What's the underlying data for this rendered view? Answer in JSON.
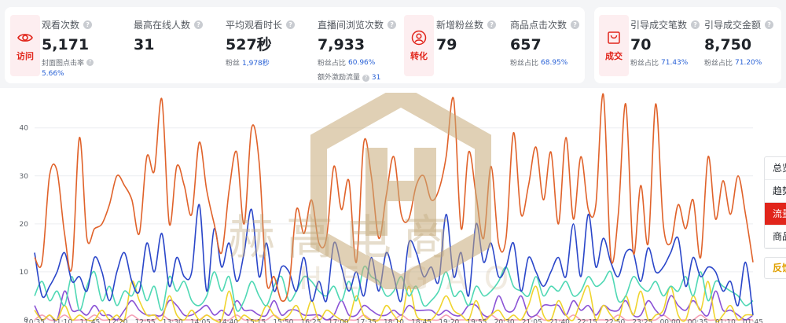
{
  "visit_section": {
    "label": "访问",
    "icon": "eye-icon",
    "metrics": [
      {
        "label": "观看次数",
        "value": "5,171",
        "sub_label": "封面图点击率",
        "sub_value": "5.66%"
      },
      {
        "label": "最高在线人数",
        "value": "31"
      },
      {
        "label": "平均观看时长",
        "value": "527秒",
        "sub_label": "粉丝",
        "sub_value": "1,978秒"
      },
      {
        "label": "直播间浏览次数",
        "value": "7,933",
        "sub_label": "粉丝占比",
        "sub_value": "60.96%",
        "sub2_label": "额外激励流量",
        "sub2_value": "31"
      }
    ]
  },
  "conversion_section": {
    "label": "转化",
    "icon": "user-circle-icon",
    "metrics": [
      {
        "label": "新增粉丝数",
        "value": "79"
      },
      {
        "label": "商品点击次数",
        "value": "657",
        "sub_label": "粉丝占比",
        "sub_value": "68.95%"
      }
    ]
  },
  "deal_section": {
    "label": "成交",
    "icon": "shopping-bag-icon",
    "metrics": [
      {
        "label": "引导成交笔数",
        "value": "70",
        "sub_label": "粉丝占比",
        "sub_value": "71.43%"
      },
      {
        "label": "引导成交金额",
        "value": "8,750",
        "sub_label": "粉丝占比",
        "sub_value": "71.20%"
      }
    ]
  },
  "watermark": {
    "text": "赫高电商",
    "sub": "HE GAO"
  },
  "series_menu": {
    "items": [
      {
        "label": "总览",
        "active": false
      },
      {
        "label": "趋势",
        "active": false
      },
      {
        "label": "流量",
        "active": true
      },
      {
        "label": "商品",
        "active": false
      }
    ],
    "feedback": "反馈"
  },
  "colors": {
    "accent": "#e1251b",
    "primary_blue": "#2a62d6",
    "category_bg": "#fdeef0"
  },
  "chart_data": {
    "type": "line",
    "ylim": [
      0,
      47
    ],
    "yticks": [
      0,
      10,
      20,
      30,
      40
    ],
    "xticks": [
      "10:35",
      "11:10",
      "11:45",
      "12:20",
      "12:55",
      "13:30",
      "14:05",
      "14:40",
      "15:15",
      "15:50",
      "16:25",
      "17:00",
      "17:35",
      "18:10",
      "18:45",
      "19:20",
      "19:55",
      "20:30",
      "21:05",
      "21:40",
      "22:15",
      "22:50",
      "23:25",
      "00:00",
      "00:35",
      "01:10",
      "01:45"
    ],
    "grid": true,
    "series": [
      {
        "color": "#e0622a",
        "values": [
          13,
          12,
          30,
          31,
          18,
          11,
          38,
          17,
          19,
          20,
          24,
          30,
          28,
          25,
          18,
          34,
          31,
          46,
          20,
          32,
          28,
          22,
          37,
          27,
          20,
          14,
          27,
          35,
          20,
          40,
          33,
          8,
          9,
          4,
          7,
          23,
          18,
          25,
          16,
          17,
          32,
          23,
          29,
          12,
          37,
          30,
          17,
          26,
          34,
          22,
          21,
          28,
          30,
          25,
          27,
          34,
          46,
          19,
          35,
          26,
          17,
          32,
          16,
          17,
          39,
          22,
          28,
          36,
          25,
          35,
          20,
          38,
          21,
          34,
          23,
          24,
          47,
          13,
          22,
          45,
          14,
          28,
          16,
          45,
          20,
          16,
          24,
          19,
          25,
          13,
          34,
          21,
          29,
          22,
          30,
          22,
          12
        ]
      },
      {
        "color": "#2a46c9",
        "values": [
          14,
          5,
          7,
          10,
          14,
          8,
          9,
          6,
          13,
          10,
          4,
          10,
          14,
          8,
          6,
          16,
          10,
          18,
          7,
          13,
          9,
          10,
          24,
          6,
          19,
          11,
          16,
          8,
          14,
          23,
          9,
          16,
          6,
          11,
          10,
          6,
          13,
          4,
          8,
          4,
          16,
          11,
          6,
          10,
          5,
          13,
          6,
          14,
          9,
          4,
          16,
          14,
          9,
          11,
          8,
          22,
          9,
          14,
          5,
          20,
          12,
          16,
          9,
          11,
          16,
          6,
          13,
          10,
          7,
          10,
          13,
          9,
          20,
          9,
          22,
          11,
          17,
          12,
          9,
          14,
          14,
          8,
          15,
          10,
          11,
          14,
          17,
          7,
          13,
          9,
          11,
          10,
          6,
          8,
          3,
          12,
          1
        ]
      },
      {
        "color": "#4fd8b4",
        "values": [
          5,
          8,
          4,
          6,
          3,
          9,
          2,
          7,
          10,
          4,
          7,
          3,
          6,
          5,
          8,
          4,
          7,
          2,
          9,
          6,
          8,
          4,
          3,
          5,
          10,
          6,
          9,
          2,
          4,
          8,
          5,
          3,
          7,
          9,
          4,
          6,
          9,
          8,
          6,
          5,
          7,
          4,
          8,
          4,
          11,
          9,
          8,
          5,
          6,
          9,
          5,
          7,
          3,
          4,
          6,
          10,
          5,
          6,
          3,
          7,
          5,
          6,
          8,
          11,
          7,
          6,
          5,
          9,
          5,
          7,
          6,
          8,
          5,
          6,
          9,
          7,
          8,
          10,
          4,
          5,
          9,
          7,
          6,
          8,
          5,
          7,
          6,
          9,
          5,
          10,
          4,
          8,
          7,
          6,
          5,
          3,
          4
        ]
      },
      {
        "color": "#f0d42e",
        "values": [
          2,
          0,
          1,
          0,
          3,
          0,
          1,
          0,
          0,
          2,
          0,
          1,
          0,
          8,
          4,
          1,
          1,
          0,
          5,
          1,
          0,
          2,
          0,
          1,
          0,
          0,
          6,
          0,
          1,
          0,
          0,
          3,
          1,
          0,
          1,
          3,
          0,
          4,
          0,
          2,
          1,
          0,
          0,
          5,
          1,
          0,
          0,
          3,
          1,
          0,
          7,
          1,
          0,
          0,
          2,
          5,
          2,
          1,
          0,
          4,
          0,
          1,
          2,
          0,
          1,
          0,
          3,
          7,
          1,
          0,
          4,
          1,
          0,
          4,
          7,
          0,
          3,
          1,
          0,
          5,
          1,
          6,
          0,
          1,
          2,
          7,
          1,
          0,
          5,
          2,
          8,
          0,
          1,
          3,
          0,
          1,
          1
        ]
      },
      {
        "color": "#8b53d6",
        "values": [
          3,
          0,
          1,
          0,
          6,
          2,
          2,
          1,
          3,
          1,
          1,
          0,
          2,
          4,
          2,
          1,
          1,
          1,
          4,
          3,
          1,
          1,
          2,
          3,
          1,
          2,
          1,
          4,
          2,
          2,
          1,
          1,
          4,
          1,
          2,
          2,
          1,
          1,
          1,
          0,
          1,
          4,
          1,
          1,
          3,
          2,
          1,
          1,
          2,
          1,
          3,
          2,
          2,
          2,
          1,
          2,
          1,
          1,
          3,
          3,
          1,
          1,
          5,
          2,
          2,
          5,
          1,
          1,
          3,
          3,
          3,
          1,
          4,
          2,
          3,
          1,
          3,
          2,
          2,
          4,
          1,
          1,
          4,
          2,
          1,
          5,
          3,
          2,
          4,
          2,
          1,
          6,
          2,
          2,
          1,
          0,
          1
        ]
      },
      {
        "color": "#f5a0b6",
        "values": [
          0,
          1,
          0,
          0,
          1,
          0,
          0,
          0,
          1,
          0,
          0,
          0,
          0,
          1,
          0,
          0,
          0,
          1,
          0,
          0,
          0,
          0,
          0,
          1,
          0,
          0,
          0,
          1,
          0,
          0,
          0,
          0,
          1,
          0,
          0,
          0,
          0,
          0,
          1,
          0,
          0,
          0,
          0,
          0,
          1,
          0,
          0,
          0,
          0,
          1,
          0,
          0,
          0,
          0,
          0,
          1,
          0,
          0,
          0,
          0,
          0,
          1,
          0,
          0,
          0,
          0,
          0,
          1,
          0,
          0,
          0,
          0,
          1,
          0,
          0,
          0,
          0,
          0,
          1,
          0,
          0,
          0,
          0,
          0,
          1,
          0,
          0,
          0,
          0,
          1,
          0,
          0,
          0,
          0,
          0,
          0,
          0
        ]
      }
    ]
  }
}
